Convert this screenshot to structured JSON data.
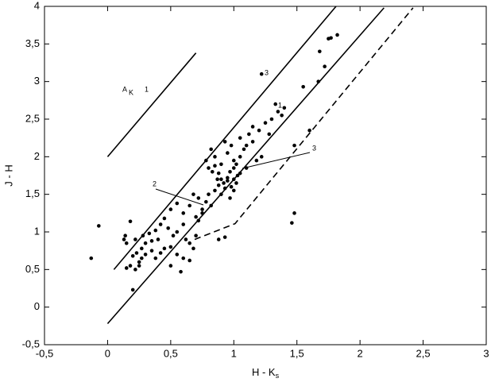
{
  "chart_data": {
    "type": "scatter",
    "x_label": "H - K",
    "x_label_sub": "s",
    "y_label": "J - H",
    "annotations": [
      "A",
      "K",
      "1",
      "3",
      "1",
      "2",
      "3"
    ],
    "color": "#000000",
    "xlim": [
      -0.5,
      3
    ],
    "ylim": [
      -0.5,
      4
    ],
    "xticks": [
      {
        "value": -0.5,
        "label": "-0,5"
      },
      0,
      {
        "value": 0.5,
        "label": "0,5"
      },
      1,
      {
        "value": 1.5,
        "label": "1,5"
      },
      2,
      {
        "value": 2.5,
        "label": "2,5"
      },
      3
    ],
    "yticks": [
      {
        "value": -0.5,
        "label": "-0,5"
      },
      0,
      {
        "value": 0.5,
        "label": "0,5"
      },
      1,
      {
        "value": 1.5,
        "label": "1,5"
      },
      2,
      {
        "value": 2.5,
        "label": "2,5"
      },
      3,
      {
        "value": 3.5,
        "label": "3,5"
      },
      4
    ],
    "x": [
      -0.13,
      -0.07,
      0.2,
      0.18,
      1.48,
      1.46,
      0.93,
      0.88,
      1.82,
      1.77,
      1.75,
      1.68,
      1.72,
      1.67,
      1.55,
      1.6,
      1.48,
      1.22,
      0.58,
      0.5,
      0.45,
      0.35,
      0.15,
      0.18,
      0.22,
      0.25,
      0.2,
      0.23,
      0.27,
      0.3,
      0.22,
      0.28,
      0.33,
      0.38,
      0.15,
      0.13,
      0.14,
      0.42,
      0.45,
      0.48,
      0.52,
      0.55,
      0.6,
      0.62,
      0.65,
      0.68,
      0.4,
      0.35,
      0.3,
      0.27,
      0.25,
      0.38,
      0.42,
      0.5,
      0.55,
      0.6,
      0.65,
      0.7,
      0.72,
      0.75,
      0.5,
      0.55,
      0.6,
      0.78,
      0.8,
      0.82,
      0.85,
      0.88,
      0.9,
      0.92,
      0.95,
      0.97,
      1.0,
      1.02,
      1.05,
      0.98,
      0.93,
      0.87,
      0.83,
      0.8,
      0.78,
      0.85,
      0.9,
      0.95,
      1.0,
      1.05,
      1.08,
      1.1,
      0.9,
      0.95,
      1.0,
      1.03,
      0.88,
      0.75,
      0.72,
      0.7,
      0.65,
      0.68,
      0.98,
      0.93,
      1.05,
      1.1,
      1.12,
      1.15,
      1.2,
      1.25,
      1.3,
      1.35,
      1.38,
      1.33,
      1.4,
      1.28,
      1.22,
      1.18,
      1.15,
      1.0,
      0.97,
      1.02,
      0.85,
      0.82
    ],
    "values": [
      0.65,
      1.08,
      0.23,
      1.14,
      1.25,
      1.12,
      0.93,
      0.9,
      3.62,
      3.58,
      3.57,
      3.4,
      3.2,
      3.0,
      2.93,
      2.35,
      2.15,
      3.1,
      0.47,
      0.55,
      0.78,
      0.75,
      0.52,
      0.55,
      0.5,
      0.6,
      0.68,
      0.72,
      0.78,
      0.85,
      0.9,
      0.95,
      0.98,
      1.02,
      0.85,
      0.9,
      0.95,
      1.1,
      1.18,
      1.05,
      0.95,
      1.0,
      1.1,
      0.9,
      0.85,
      0.78,
      0.9,
      0.88,
      0.7,
      0.65,
      0.55,
      0.65,
      0.72,
      0.8,
      0.7,
      0.65,
      0.62,
      0.95,
      1.15,
      1.25,
      1.3,
      1.38,
      1.25,
      1.4,
      1.5,
      1.35,
      1.55,
      1.62,
      1.7,
      1.65,
      1.72,
      1.8,
      1.85,
      1.9,
      1.78,
      1.6,
      1.58,
      1.7,
      1.8,
      1.85,
      1.95,
      2.0,
      1.9,
      2.05,
      1.95,
      2.0,
      2.1,
      1.85,
      1.5,
      1.68,
      1.7,
      1.75,
      1.78,
      1.3,
      1.45,
      1.2,
      1.35,
      1.5,
      2.15,
      2.2,
      2.25,
      2.15,
      2.3,
      2.2,
      2.35,
      2.45,
      2.5,
      2.6,
      2.55,
      2.7,
      2.65,
      2.3,
      2.0,
      1.95,
      2.4,
      1.55,
      1.45,
      1.65,
      1.88,
      2.1
    ],
    "lines": [
      {
        "x": [
          0,
          0.7
        ],
        "values": [
          2,
          3.38
        ],
        "dashed": false
      },
      {
        "x": [
          0.05,
          1.81
        ],
        "values": [
          0.5,
          4
        ],
        "dashed": false
      },
      {
        "x": [
          0,
          2.19
        ],
        "values": [
          -0.22,
          3.98
        ],
        "dashed": false
      },
      {
        "x": [
          0.69,
          1.01,
          2.42
        ],
        "values": [
          0.9,
          1.11,
          3.98
        ],
        "dashed": true
      }
    ]
  }
}
